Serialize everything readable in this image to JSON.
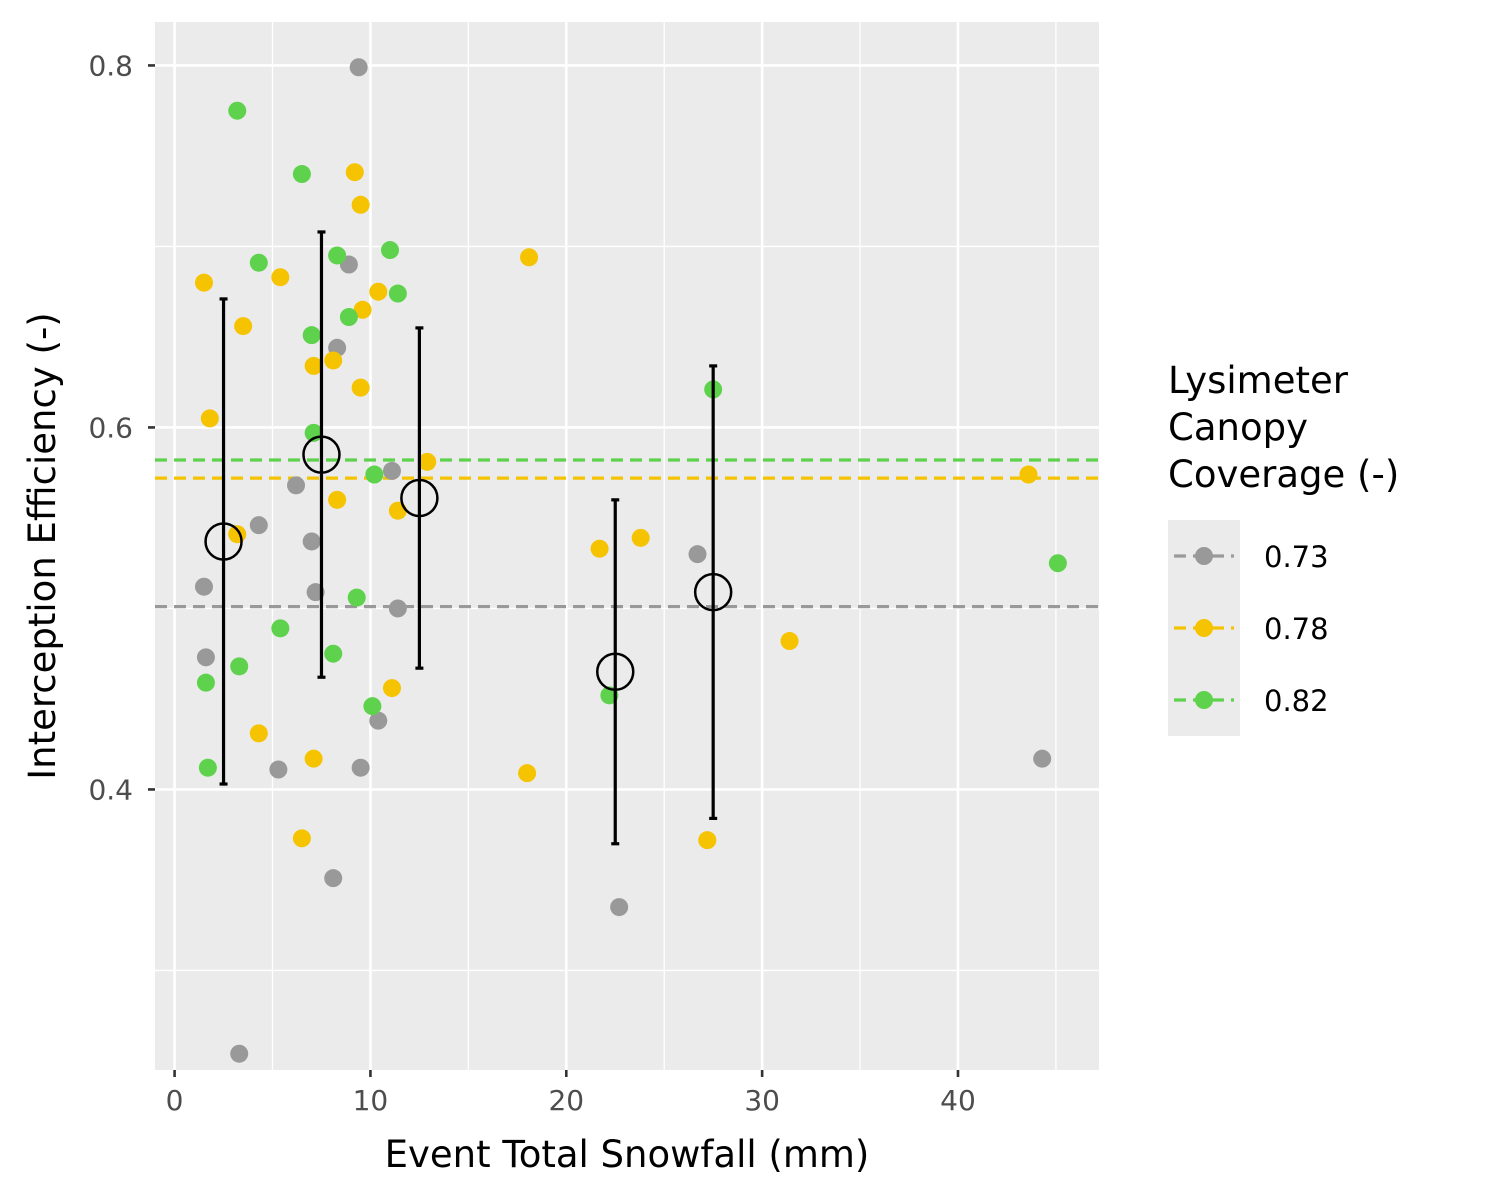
{
  "chart_data": {
    "type": "scatter",
    "title": "",
    "xlabel": "Event Total Snowfall (mm)",
    "ylabel": "Interception Efficiency (-)",
    "xlim": [
      -1,
      47.2
    ],
    "ylim": [
      0.245,
      0.824
    ],
    "x_ticks": [
      0,
      10,
      20,
      30,
      40
    ],
    "y_ticks": [
      0.4,
      0.6,
      0.8
    ],
    "x_tick_labels": [
      "0",
      "10",
      "20",
      "30",
      "40"
    ],
    "y_tick_labels": [
      "0.4",
      "0.6",
      "0.8"
    ],
    "x_minor_gridlines": [
      5,
      15,
      25,
      35,
      45
    ],
    "y_minor_gridlines": [
      0.3,
      0.5,
      0.7
    ],
    "grid": true,
    "panel_background": "#EBEBEB",
    "legend": {
      "position": "right",
      "title_lines": [
        "Lysimeter",
        "Canopy",
        "Coverage (-)"
      ]
    },
    "series": [
      {
        "name": "0.73",
        "color": "#999999",
        "mean_line": 0.501,
        "points": [
          [
            9.4,
            0.799
          ],
          [
            8.9,
            0.69
          ],
          [
            8.3,
            0.644
          ],
          [
            6.2,
            0.568
          ],
          [
            11.1,
            0.576
          ],
          [
            4.3,
            0.546
          ],
          [
            7.0,
            0.537
          ],
          [
            1.5,
            0.512
          ],
          [
            7.2,
            0.509
          ],
          [
            11.4,
            0.5
          ],
          [
            1.6,
            0.473
          ],
          [
            10.4,
            0.438
          ],
          [
            5.3,
            0.411
          ],
          [
            9.5,
            0.412
          ],
          [
            8.1,
            0.351
          ],
          [
            3.3,
            0.254
          ],
          [
            22.7,
            0.335
          ],
          [
            26.7,
            0.53
          ],
          [
            44.3,
            0.417
          ]
        ]
      },
      {
        "name": "0.78",
        "color": "#F5C300",
        "mean_line": 0.572,
        "points": [
          [
            9.2,
            0.741
          ],
          [
            9.5,
            0.723
          ],
          [
            1.5,
            0.68
          ],
          [
            5.4,
            0.683
          ],
          [
            10.4,
            0.675
          ],
          [
            9.6,
            0.665
          ],
          [
            3.5,
            0.656
          ],
          [
            8.1,
            0.637
          ],
          [
            7.1,
            0.634
          ],
          [
            9.5,
            0.622
          ],
          [
            1.8,
            0.605
          ],
          [
            12.9,
            0.581
          ],
          [
            8.3,
            0.56
          ],
          [
            11.4,
            0.554
          ],
          [
            3.2,
            0.541
          ],
          [
            11.1,
            0.456
          ],
          [
            4.3,
            0.431
          ],
          [
            7.1,
            0.417
          ],
          [
            6.5,
            0.373
          ],
          [
            18.1,
            0.694
          ],
          [
            18.0,
            0.409
          ],
          [
            21.7,
            0.533
          ],
          [
            23.8,
            0.539
          ],
          [
            27.2,
            0.372
          ],
          [
            31.4,
            0.482
          ],
          [
            43.6,
            0.574
          ]
        ]
      },
      {
        "name": "0.82",
        "color": "#5ED24C",
        "mean_line": 0.582,
        "points": [
          [
            3.2,
            0.775
          ],
          [
            6.5,
            0.74
          ],
          [
            4.3,
            0.691
          ],
          [
            8.3,
            0.695
          ],
          [
            11.0,
            0.698
          ],
          [
            11.4,
            0.674
          ],
          [
            8.9,
            0.661
          ],
          [
            7.0,
            0.651
          ],
          [
            7.1,
            0.597
          ],
          [
            10.2,
            0.574
          ],
          [
            9.3,
            0.506
          ],
          [
            5.4,
            0.489
          ],
          [
            8.1,
            0.475
          ],
          [
            3.3,
            0.468
          ],
          [
            1.6,
            0.459
          ],
          [
            10.1,
            0.446
          ],
          [
            1.7,
            0.412
          ],
          [
            22.2,
            0.452
          ],
          [
            27.5,
            0.621
          ],
          [
            45.1,
            0.525
          ]
        ]
      }
    ],
    "binned_summary": {
      "color": "#000000",
      "bins": [
        {
          "x": 2.5,
          "mean": 0.537,
          "lower": 0.403,
          "upper": 0.671
        },
        {
          "x": 7.5,
          "mean": 0.585,
          "lower": 0.462,
          "upper": 0.708
        },
        {
          "x": 12.5,
          "mean": 0.561,
          "lower": 0.467,
          "upper": 0.655
        },
        {
          "x": 22.5,
          "mean": 0.465,
          "lower": 0.37,
          "upper": 0.56
        },
        {
          "x": 27.5,
          "mean": 0.509,
          "lower": 0.384,
          "upper": 0.634
        }
      ]
    }
  }
}
